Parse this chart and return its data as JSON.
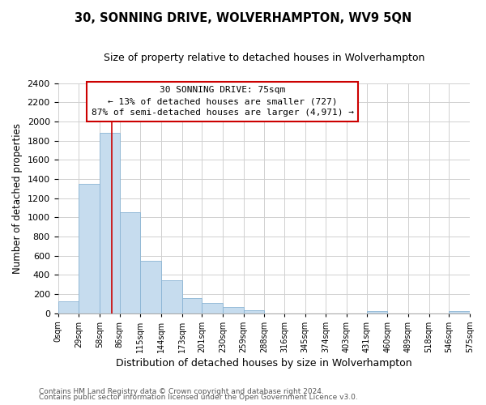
{
  "title": "30, SONNING DRIVE, WOLVERHAMPTON, WV9 5QN",
  "subtitle": "Size of property relative to detached houses in Wolverhampton",
  "xlabel": "Distribution of detached houses by size in Wolverhampton",
  "ylabel": "Number of detached properties",
  "footer1": "Contains HM Land Registry data © Crown copyright and database right 2024.",
  "footer2": "Contains public sector information licensed under the Open Government Licence v3.0.",
  "bin_edges": [
    0,
    29,
    58,
    86,
    115,
    144,
    173,
    201,
    230,
    259,
    288,
    316,
    345,
    374,
    403,
    431,
    460,
    489,
    518,
    546,
    575
  ],
  "bin_labels": [
    "0sqm",
    "29sqm",
    "58sqm",
    "86sqm",
    "115sqm",
    "144sqm",
    "173sqm",
    "201sqm",
    "230sqm",
    "259sqm",
    "288sqm",
    "316sqm",
    "345sqm",
    "374sqm",
    "403sqm",
    "431sqm",
    "460sqm",
    "489sqm",
    "518sqm",
    "546sqm",
    "575sqm"
  ],
  "bar_values": [
    125,
    1350,
    1880,
    1050,
    550,
    340,
    160,
    110,
    60,
    30,
    0,
    0,
    0,
    0,
    0,
    18,
    0,
    0,
    0,
    18
  ],
  "bar_color": "#c6dcee",
  "bar_edge_color": "#8ab4d4",
  "annotation_line1": "30 SONNING DRIVE: 75sqm",
  "annotation_line2": "← 13% of detached houses are smaller (727)",
  "annotation_line3": "87% of semi-detached houses are larger (4,971) →",
  "annotation_box_color": "#ffffff",
  "annotation_box_edge_color": "#cc0000",
  "vline_x": 75,
  "vline_color": "#cc0000",
  "ylim": [
    0,
    2400
  ],
  "background_color": "#ffffff",
  "grid_color": "#d0d0d0"
}
